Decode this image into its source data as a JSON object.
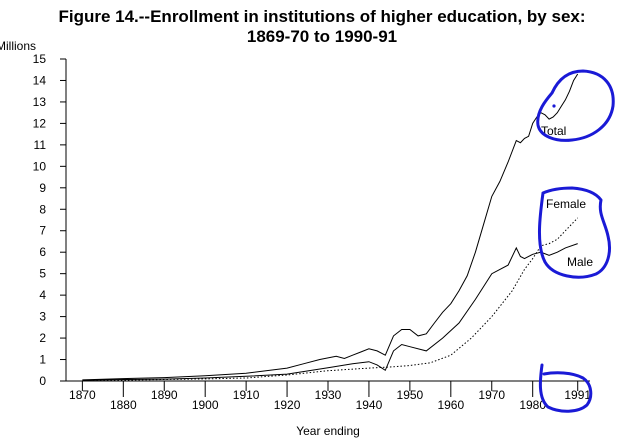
{
  "chart_data": {
    "type": "line",
    "title": "Figure 14.--Enrollment in institutions of higher education, by sex:",
    "subtitle": "1869-70 to 1990-91",
    "ylabel": "Millions",
    "xlabel": "Year ending",
    "ylim": [
      0,
      15
    ],
    "xlim": [
      1866,
      1994
    ],
    "yticks": [
      0,
      1,
      2,
      3,
      4,
      5,
      6,
      7,
      8,
      9,
      10,
      11,
      12,
      13,
      14,
      15
    ],
    "xticks": [
      1870,
      1880,
      1890,
      1900,
      1910,
      1920,
      1930,
      1940,
      1950,
      1960,
      1970,
      1980,
      1991
    ],
    "xtick_labels": [
      "1870",
      "1880",
      "1890",
      "1900",
      "1910",
      "1920",
      "1930",
      "1940",
      "1950",
      "1960",
      "1970",
      "1980",
      "1991"
    ],
    "grid": false,
    "series": [
      {
        "name": "Total",
        "style": "solid",
        "x": [
          1870,
          1880,
          1890,
          1900,
          1910,
          1920,
          1924,
          1928,
          1932,
          1934,
          1936,
          1938,
          1940,
          1942,
          1944,
          1946,
          1948,
          1950,
          1952,
          1954,
          1956,
          1958,
          1960,
          1962,
          1964,
          1966,
          1968,
          1970,
          1972,
          1974,
          1976,
          1977,
          1978,
          1979,
          1980,
          1981,
          1982,
          1983,
          1984,
          1985,
          1986,
          1987,
          1988,
          1989,
          1990,
          1991
        ],
        "y": [
          0.05,
          0.11,
          0.16,
          0.24,
          0.36,
          0.6,
          0.8,
          1.0,
          1.15,
          1.05,
          1.2,
          1.35,
          1.5,
          1.4,
          1.2,
          2.1,
          2.4,
          2.4,
          2.1,
          2.2,
          2.7,
          3.2,
          3.6,
          4.2,
          4.9,
          6.0,
          7.3,
          8.6,
          9.3,
          10.2,
          11.2,
          11.1,
          11.3,
          11.4,
          12.0,
          12.3,
          12.5,
          12.4,
          12.2,
          12.3,
          12.5,
          12.8,
          13.1,
          13.5,
          14.0,
          14.3
        ]
      },
      {
        "name": "Female",
        "style": "dotted",
        "x": [
          1870,
          1880,
          1890,
          1900,
          1910,
          1920,
          1930,
          1940,
          1946,
          1950,
          1955,
          1960,
          1965,
          1970,
          1975,
          1978,
          1980,
          1982,
          1984,
          1986,
          1988,
          1991
        ],
        "y": [
          0.01,
          0.04,
          0.07,
          0.1,
          0.14,
          0.28,
          0.48,
          0.6,
          0.66,
          0.72,
          0.85,
          1.2,
          2.0,
          3.0,
          4.2,
          5.2,
          5.7,
          6.3,
          6.4,
          6.6,
          7.0,
          7.6
        ]
      },
      {
        "name": "Male",
        "style": "solid",
        "x": [
          1870,
          1880,
          1890,
          1900,
          1910,
          1920,
          1930,
          1936,
          1940,
          1942,
          1944,
          1946,
          1948,
          1950,
          1954,
          1958,
          1962,
          1966,
          1970,
          1974,
          1976,
          1977,
          1978,
          1980,
          1982,
          1984,
          1986,
          1988,
          1991
        ],
        "y": [
          0.04,
          0.07,
          0.09,
          0.14,
          0.22,
          0.32,
          0.62,
          0.8,
          0.9,
          0.75,
          0.5,
          1.4,
          1.7,
          1.6,
          1.4,
          2.0,
          2.7,
          3.8,
          5.0,
          5.4,
          6.2,
          5.8,
          5.7,
          5.9,
          6.0,
          5.85,
          6.0,
          6.2,
          6.4
        ]
      }
    ],
    "annotations": {
      "total_label": "Total",
      "female_label": "Female",
      "male_label": "Male"
    },
    "markup_color": "#1a1ad6"
  }
}
